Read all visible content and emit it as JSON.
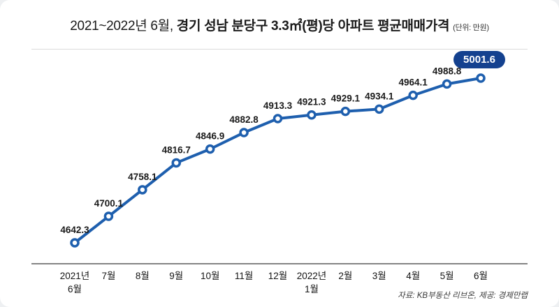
{
  "title": {
    "prefix": "2021~2022년 6월, ",
    "main": "경기 성남 분당구 3.3㎡(평)당 아파트 평균매매가격",
    "unit": "(단위: 만원)"
  },
  "badge": {
    "value": "5001.6"
  },
  "source": "자료: KB부동산 리브온, 제공: 경제만랩",
  "colors": {
    "line": "#1e5fae",
    "badge": "#14418f",
    "axis": "#3a3a3a",
    "label": "#1a1a1a"
  },
  "chart_data": {
    "type": "line",
    "title": "2021~2022년 6월, 경기 성남 분당구 3.3㎡(평)당 아파트 평균매매가격",
    "unit": "만원",
    "categories": [
      "2021년\n6월",
      "7월",
      "8월",
      "9월",
      "10월",
      "11월",
      "12월",
      "2022년\n1월",
      "2월",
      "3월",
      "4월",
      "5월",
      "6월"
    ],
    "values": [
      4642.3,
      4700.1,
      4758.1,
      4816.7,
      4846.9,
      4882.8,
      4913.3,
      4921.3,
      4929.1,
      4934.1,
      4964.1,
      4988.8,
      5001.6
    ],
    "highlight_index": 12,
    "ylim": [
      4600,
      5060
    ],
    "grid": false,
    "legend": "none"
  }
}
